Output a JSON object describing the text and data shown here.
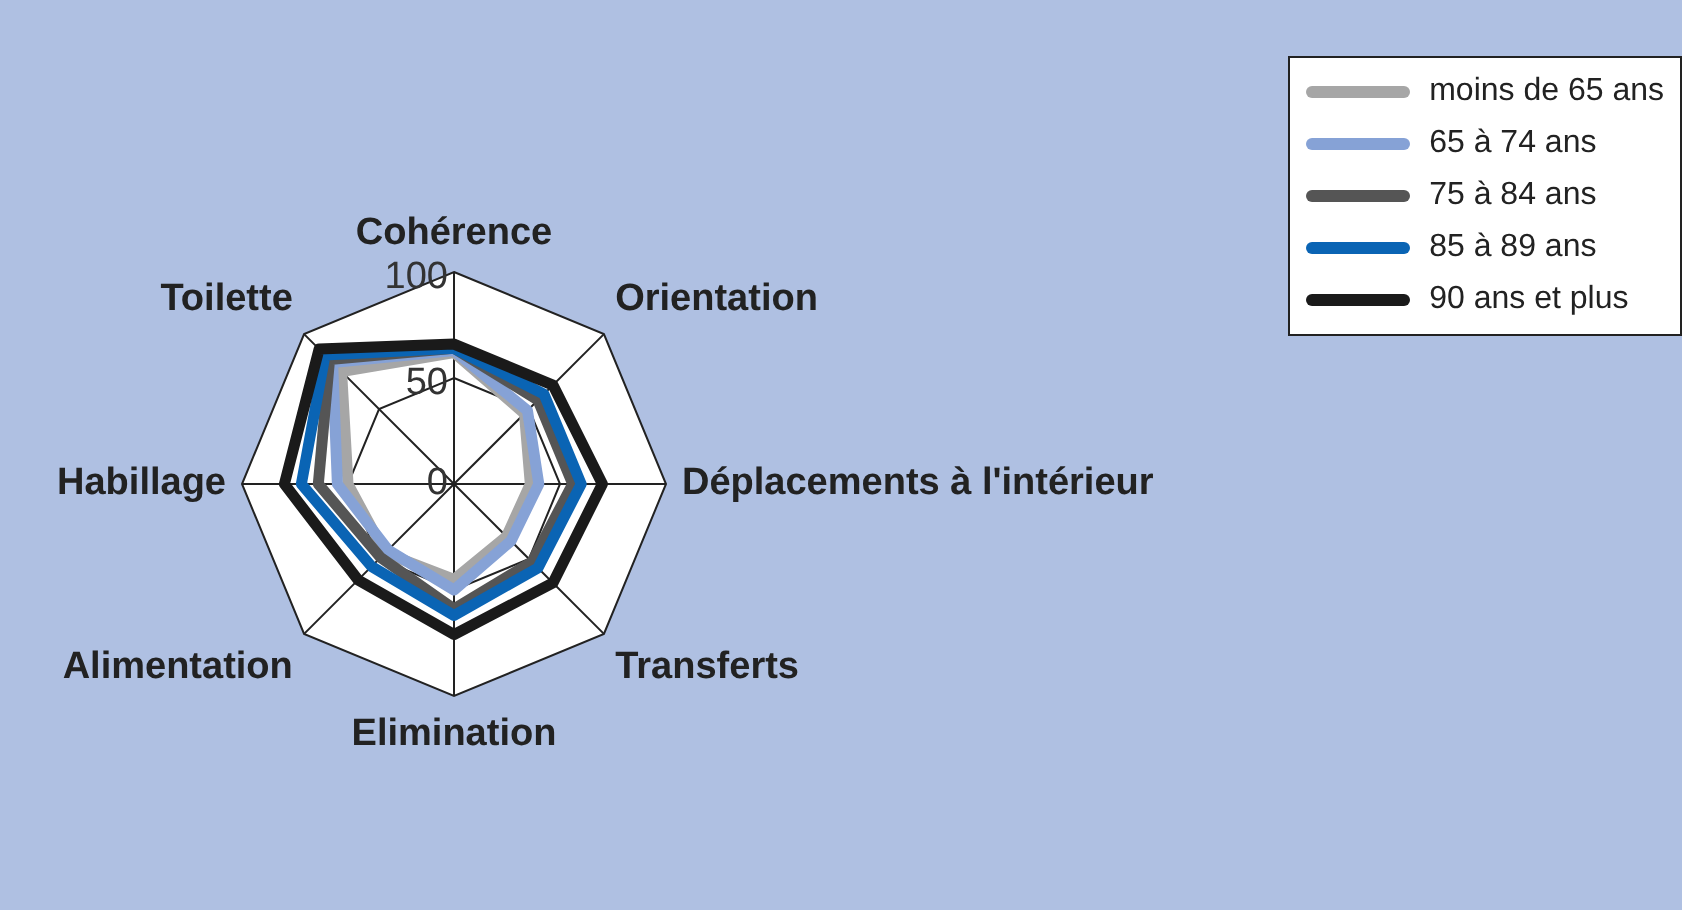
{
  "chart_data": {
    "type": "radar",
    "categories": [
      "Cohérence",
      "Orientation",
      "Déplacements à l'intérieur",
      "Transferts",
      "Elimination",
      "Alimentation",
      "Habillage",
      "Toilette"
    ],
    "series": [
      {
        "name": "moins de 65 ans",
        "color": "#a6a6a6",
        "values": [
          62,
          47,
          36,
          35,
          45,
          46,
          50,
          75
        ]
      },
      {
        "name": "65 à 74 ans",
        "color": "#86a2d6",
        "values": [
          63,
          49,
          40,
          38,
          50,
          44,
          55,
          81
        ]
      },
      {
        "name": "75 à 84 ans",
        "color": "#555555",
        "values": [
          64,
          56,
          56,
          52,
          59,
          49,
          64,
          83
        ]
      },
      {
        "name": "85 à 89 ans",
        "color": "#0a64b4",
        "values": [
          64,
          60,
          60,
          56,
          62,
          55,
          72,
          86
        ]
      },
      {
        "name": "90 ans et plus",
        "color": "#1a1a1a",
        "values": [
          66,
          66,
          70,
          66,
          71,
          64,
          80,
          90
        ]
      }
    ],
    "ylim": [
      0,
      100
    ],
    "yticks": [
      0,
      50,
      100
    ],
    "grid": true,
    "legend": "top right",
    "marker": "none",
    "line_style": "solid"
  }
}
